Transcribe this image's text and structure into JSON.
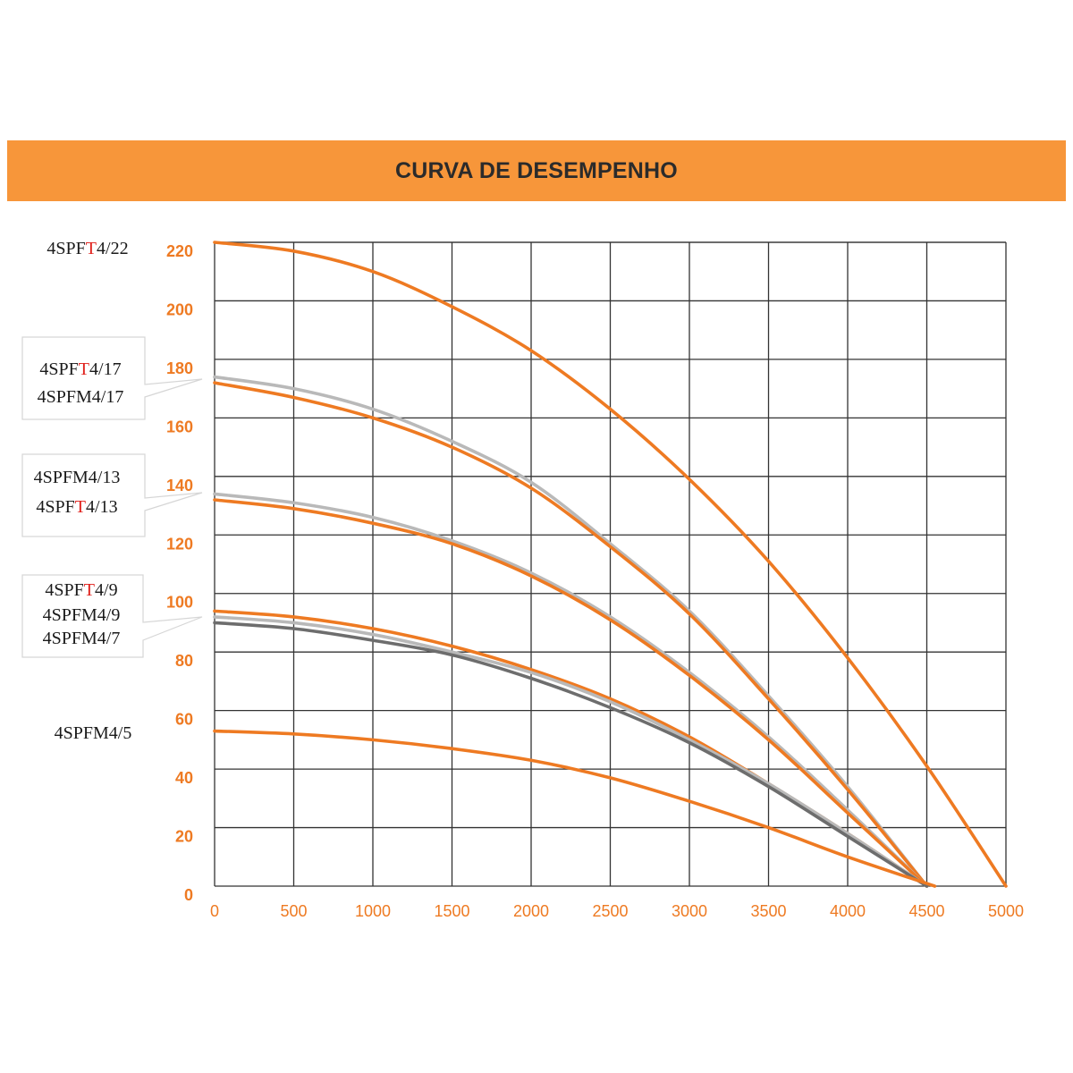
{
  "header": {
    "title": "CURVA DE DESEMPENHO",
    "bar_color": "#f7963a"
  },
  "colors": {
    "orange": "#ee7a22",
    "light_gray": "#b9b9b9",
    "dark_gray": "#6d6d6d",
    "grid": "#333333",
    "callout_border": "#d6d6d6",
    "highlight": "#e0201b"
  },
  "legend_groups": [
    {
      "id": "g22",
      "boxed": false,
      "labels": [
        {
          "pre": "4SPF",
          "hl": "T",
          "post": "4/22"
        }
      ]
    },
    {
      "id": "g17",
      "boxed": true,
      "labels": [
        {
          "pre": "4SPF",
          "hl": "T",
          "post": "4/17"
        },
        {
          "pre": "4SPFM4/17",
          "hl": "",
          "post": ""
        }
      ]
    },
    {
      "id": "g13",
      "boxed": true,
      "labels": [
        {
          "pre": "4SPFM4/13",
          "hl": "",
          "post": ""
        },
        {
          "pre": "4SPF",
          "hl": "T",
          "post": "4/13"
        }
      ]
    },
    {
      "id": "g9",
      "boxed": true,
      "labels": [
        {
          "pre": "4SPF",
          "hl": "T",
          "post": "4/9"
        },
        {
          "pre": "4SPFM4/9",
          "hl": "",
          "post": ""
        },
        {
          "pre": "4SPFM4/7",
          "hl": "",
          "post": ""
        }
      ]
    },
    {
      "id": "g5",
      "boxed": false,
      "labels": [
        {
          "pre": "4SPFM4/5",
          "hl": "",
          "post": ""
        }
      ]
    }
  ],
  "chart_data": {
    "type": "line",
    "title": "CURVA DE DESEMPENHO",
    "xlabel": "",
    "ylabel": "",
    "xlim": [
      0,
      5000
    ],
    "ylim": [
      0,
      220
    ],
    "x_ticks": [
      0,
      500,
      1000,
      1500,
      2000,
      2500,
      3000,
      3500,
      4000,
      4500,
      5000
    ],
    "y_ticks": [
      0,
      20,
      40,
      60,
      80,
      100,
      120,
      140,
      160,
      180,
      200,
      220
    ],
    "grid": true,
    "legend": "left",
    "series": [
      {
        "color": "#ee7a22",
        "x": [
          0,
          500,
          1000,
          1500,
          2000,
          2500,
          3000,
          3500,
          4000,
          4500,
          5000
        ],
        "y": [
          220,
          217,
          210,
          198,
          183,
          163,
          139,
          111,
          78,
          41,
          0
        ]
      },
      {
        "color": "#b9b9b9",
        "x": [
          0,
          500,
          1000,
          1500,
          2000,
          2500,
          3000,
          3500,
          4000,
          4500
        ],
        "y": [
          174,
          170,
          163,
          152,
          138,
          117,
          94,
          65,
          34,
          0
        ]
      },
      {
        "color": "#ee7a22",
        "x": [
          0,
          500,
          1000,
          1500,
          2000,
          2500,
          3000,
          3500,
          4000,
          4500
        ],
        "y": [
          172,
          167,
          160,
          150,
          136,
          116,
          93,
          64,
          33,
          0
        ]
      },
      {
        "color": "#b9b9b9",
        "x": [
          0,
          500,
          1000,
          1500,
          2000,
          2500,
          3000,
          3500,
          4000,
          4500
        ],
        "y": [
          134,
          131,
          126,
          118,
          107,
          92,
          73,
          51,
          26,
          0
        ]
      },
      {
        "color": "#ee7a22",
        "x": [
          0,
          500,
          1000,
          1500,
          2000,
          2500,
          3000,
          3500,
          4000,
          4500
        ],
        "y": [
          132,
          129,
          124,
          117,
          106,
          91,
          72,
          50,
          25,
          0
        ]
      },
      {
        "color": "#ee7a22",
        "x": [
          0,
          500,
          1000,
          1500,
          2000,
          2500,
          3000,
          3500,
          4000,
          4500
        ],
        "y": [
          94,
          92,
          88,
          82,
          74,
          64,
          51,
          35,
          18,
          0
        ]
      },
      {
        "color": "#b9b9b9",
        "x": [
          0,
          500,
          1000,
          1500,
          2000,
          2500,
          3000,
          3500,
          4000,
          4500
        ],
        "y": [
          92,
          90,
          86,
          80,
          73,
          63,
          50,
          35,
          18,
          0
        ]
      },
      {
        "color": "#6d6d6d",
        "x": [
          0,
          500,
          1000,
          1500,
          2000,
          2500,
          3000,
          3500,
          4000,
          4500
        ],
        "y": [
          90,
          88,
          84,
          79,
          71,
          61,
          49,
          34,
          17,
          0
        ]
      },
      {
        "color": "#ee7a22",
        "x": [
          0,
          500,
          1000,
          1500,
          2000,
          2500,
          3000,
          3500,
          4000,
          4550
        ],
        "y": [
          53,
          52,
          50,
          47,
          43,
          37,
          29,
          20,
          10,
          0
        ]
      }
    ]
  }
}
